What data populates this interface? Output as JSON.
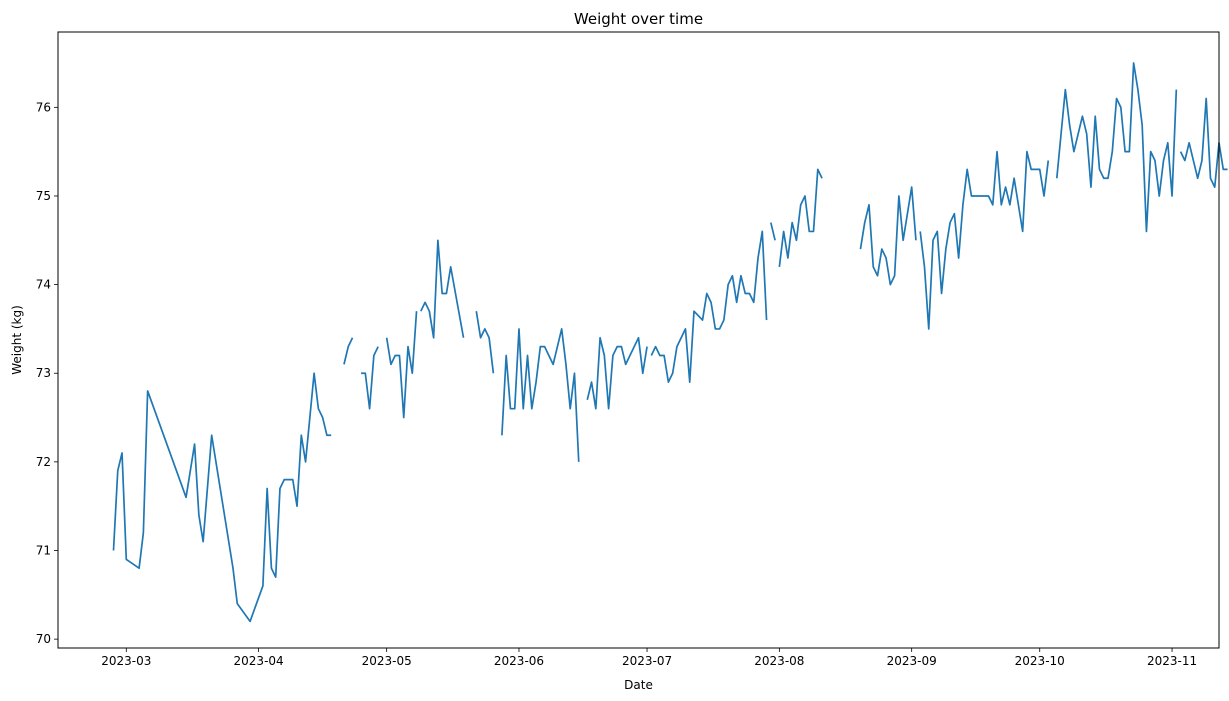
{
  "chart_data": {
    "type": "line",
    "title": "Weight over time",
    "xlabel": "Date",
    "ylabel": "Weight (kg)",
    "xlim": [
      "2023-02-13",
      "2023-11-12"
    ],
    "ylim": [
      69.9,
      76.85
    ],
    "grid": false,
    "x_ticks": [
      "2023-03-01",
      "2023-04-01",
      "2023-05-01",
      "2023-06-01",
      "2023-07-01",
      "2023-08-01",
      "2023-09-01",
      "2023-10-01",
      "2023-11-01"
    ],
    "x_tick_labels": [
      "2023-03",
      "2023-04",
      "2023-05",
      "2023-06",
      "2023-07",
      "2023-08",
      "2023-09",
      "2023-10",
      "2023-11"
    ],
    "y_ticks": [
      70,
      71,
      72,
      73,
      74,
      75,
      76
    ],
    "y_tick_labels": [
      "70",
      "71",
      "72",
      "73",
      "74",
      "75",
      "76"
    ],
    "series": [
      {
        "color": "#1f77b4",
        "segments": [
          [
            [
              "2023-02-26",
              71.0
            ],
            [
              "2023-02-27",
              71.9
            ],
            [
              "2023-02-28",
              72.1
            ],
            [
              "2023-03-01",
              70.9
            ],
            [
              "2023-03-04",
              70.8
            ],
            [
              "2023-03-05",
              71.2
            ],
            [
              "2023-03-06",
              72.8
            ],
            [
              "2023-03-15",
              71.6
            ],
            [
              "2023-03-17",
              72.2
            ],
            [
              "2023-03-18",
              71.4
            ],
            [
              "2023-03-19",
              71.1
            ],
            [
              "2023-03-21",
              72.3
            ],
            [
              "2023-03-25",
              71.1
            ],
            [
              "2023-03-26",
              70.8
            ],
            [
              "2023-03-27",
              70.4
            ],
            [
              "2023-03-30",
              70.2
            ],
            [
              "2023-04-02",
              70.6
            ],
            [
              "2023-04-03",
              71.7
            ],
            [
              "2023-04-04",
              70.8
            ],
            [
              "2023-04-05",
              70.7
            ],
            [
              "2023-04-06",
              71.7
            ],
            [
              "2023-04-07",
              71.8
            ],
            [
              "2023-04-09",
              71.8
            ],
            [
              "2023-04-10",
              71.5
            ],
            [
              "2023-04-11",
              72.3
            ],
            [
              "2023-04-12",
              72.0
            ],
            [
              "2023-04-14",
              73.0
            ],
            [
              "2023-04-15",
              72.6
            ],
            [
              "2023-04-16",
              72.5
            ],
            [
              "2023-04-17",
              72.3
            ],
            [
              "2023-04-18",
              72.3
            ]
          ],
          [
            [
              "2023-04-21",
              73.1
            ],
            [
              "2023-04-22",
              73.3
            ],
            [
              "2023-04-23",
              73.4
            ]
          ],
          [
            [
              "2023-04-25",
              73.0
            ],
            [
              "2023-04-26",
              73.0
            ],
            [
              "2023-04-27",
              72.6
            ],
            [
              "2023-04-28",
              73.2
            ],
            [
              "2023-04-29",
              73.3
            ]
          ],
          [
            [
              "2023-05-01",
              73.4
            ],
            [
              "2023-05-02",
              73.1
            ],
            [
              "2023-05-03",
              73.2
            ],
            [
              "2023-05-04",
              73.2
            ],
            [
              "2023-05-05",
              72.5
            ],
            [
              "2023-05-06",
              73.3
            ],
            [
              "2023-05-07",
              73.0
            ],
            [
              "2023-05-08",
              73.7
            ]
          ],
          [
            [
              "2023-05-09",
              73.7
            ],
            [
              "2023-05-10",
              73.8
            ],
            [
              "2023-05-11",
              73.7
            ],
            [
              "2023-05-12",
              73.4
            ],
            [
              "2023-05-13",
              74.5
            ],
            [
              "2023-05-14",
              73.9
            ],
            [
              "2023-05-15",
              73.9
            ],
            [
              "2023-05-16",
              74.2
            ],
            [
              "2023-05-19",
              73.4
            ]
          ],
          [
            [
              "2023-05-22",
              73.7
            ],
            [
              "2023-05-23",
              73.4
            ],
            [
              "2023-05-24",
              73.5
            ],
            [
              "2023-05-25",
              73.4
            ],
            [
              "2023-05-26",
              73.0
            ]
          ],
          [
            [
              "2023-05-28",
              72.3
            ],
            [
              "2023-05-29",
              73.2
            ],
            [
              "2023-05-30",
              72.6
            ],
            [
              "2023-05-31",
              72.6
            ],
            [
              "2023-06-01",
              73.5
            ],
            [
              "2023-06-02",
              72.6
            ],
            [
              "2023-06-03",
              73.2
            ],
            [
              "2023-06-04",
              72.6
            ],
            [
              "2023-06-05",
              72.9
            ],
            [
              "2023-06-06",
              73.3
            ],
            [
              "2023-06-07",
              73.3
            ],
            [
              "2023-06-09",
              73.1
            ],
            [
              "2023-06-10",
              73.3
            ],
            [
              "2023-06-11",
              73.5
            ],
            [
              "2023-06-12",
              73.1
            ],
            [
              "2023-06-13",
              72.6
            ],
            [
              "2023-06-14",
              73.0
            ],
            [
              "2023-06-15",
              72.0
            ]
          ],
          [
            [
              "2023-06-17",
              72.7
            ],
            [
              "2023-06-18",
              72.9
            ],
            [
              "2023-06-19",
              72.6
            ],
            [
              "2023-06-20",
              73.4
            ],
            [
              "2023-06-21",
              73.2
            ],
            [
              "2023-06-22",
              72.6
            ],
            [
              "2023-06-23",
              73.2
            ],
            [
              "2023-06-24",
              73.3
            ],
            [
              "2023-06-25",
              73.3
            ],
            [
              "2023-06-26",
              73.1
            ],
            [
              "2023-06-29",
              73.4
            ],
            [
              "2023-06-30",
              73.0
            ],
            [
              "2023-07-01",
              73.3
            ]
          ],
          [
            [
              "2023-07-02",
              73.2
            ],
            [
              "2023-07-03",
              73.3
            ],
            [
              "2023-07-04",
              73.2
            ],
            [
              "2023-07-05",
              73.2
            ],
            [
              "2023-07-06",
              72.9
            ],
            [
              "2023-07-07",
              73.0
            ],
            [
              "2023-07-08",
              73.3
            ],
            [
              "2023-07-10",
              73.5
            ],
            [
              "2023-07-11",
              72.9
            ],
            [
              "2023-07-12",
              73.7
            ],
            [
              "2023-07-14",
              73.6
            ],
            [
              "2023-07-15",
              73.9
            ],
            [
              "2023-07-16",
              73.8
            ],
            [
              "2023-07-17",
              73.5
            ],
            [
              "2023-07-18",
              73.5
            ],
            [
              "2023-07-19",
              73.6
            ],
            [
              "2023-07-20",
              74.0
            ],
            [
              "2023-07-21",
              74.1
            ],
            [
              "2023-07-22",
              73.8
            ],
            [
              "2023-07-23",
              74.1
            ],
            [
              "2023-07-24",
              73.9
            ],
            [
              "2023-07-25",
              73.9
            ],
            [
              "2023-07-26",
              73.8
            ],
            [
              "2023-07-27",
              74.3
            ],
            [
              "2023-07-28",
              74.6
            ],
            [
              "2023-07-29",
              73.6
            ]
          ],
          [
            [
              "2023-07-30",
              74.7
            ],
            [
              "2023-07-31",
              74.5
            ]
          ],
          [
            [
              "2023-08-01",
              74.2
            ],
            [
              "2023-08-02",
              74.6
            ],
            [
              "2023-08-03",
              74.3
            ],
            [
              "2023-08-04",
              74.7
            ],
            [
              "2023-08-05",
              74.5
            ],
            [
              "2023-08-06",
              74.9
            ],
            [
              "2023-08-07",
              75.0
            ],
            [
              "2023-08-08",
              74.6
            ],
            [
              "2023-08-09",
              74.6
            ],
            [
              "2023-08-10",
              75.3
            ],
            [
              "2023-08-11",
              75.2
            ]
          ],
          [
            [
              "2023-08-20",
              74.4
            ],
            [
              "2023-08-21",
              74.7
            ],
            [
              "2023-08-22",
              74.9
            ],
            [
              "2023-08-23",
              74.2
            ],
            [
              "2023-08-24",
              74.1
            ],
            [
              "2023-08-25",
              74.4
            ],
            [
              "2023-08-26",
              74.3
            ],
            [
              "2023-08-27",
              74.0
            ],
            [
              "2023-08-28",
              74.1
            ],
            [
              "2023-08-29",
              75.0
            ],
            [
              "2023-08-30",
              74.5
            ],
            [
              "2023-08-31",
              74.8
            ],
            [
              "2023-09-01",
              75.1
            ],
            [
              "2023-09-02",
              74.5
            ]
          ],
          [
            [
              "2023-09-03",
              74.6
            ],
            [
              "2023-09-04",
              74.2
            ],
            [
              "2023-09-05",
              73.5
            ],
            [
              "2023-09-06",
              74.5
            ],
            [
              "2023-09-07",
              74.6
            ],
            [
              "2023-09-08",
              73.9
            ],
            [
              "2023-09-09",
              74.4
            ],
            [
              "2023-09-10",
              74.7
            ],
            [
              "2023-09-11",
              74.8
            ],
            [
              "2023-09-12",
              74.3
            ],
            [
              "2023-09-13",
              74.9
            ],
            [
              "2023-09-14",
              75.3
            ],
            [
              "2023-09-15",
              75.0
            ],
            [
              "2023-09-18",
              75.0
            ],
            [
              "2023-09-19",
              75.0
            ],
            [
              "2023-09-20",
              74.9
            ],
            [
              "2023-09-21",
              75.5
            ],
            [
              "2023-09-22",
              74.9
            ],
            [
              "2023-09-23",
              75.1
            ],
            [
              "2023-09-24",
              74.9
            ],
            [
              "2023-09-25",
              75.2
            ],
            [
              "2023-09-26",
              74.9
            ],
            [
              "2023-09-27",
              74.6
            ],
            [
              "2023-09-28",
              75.5
            ],
            [
              "2023-09-29",
              75.3
            ],
            [
              "2023-09-30",
              75.3
            ],
            [
              "2023-10-01",
              75.3
            ],
            [
              "2023-10-02",
              75.0
            ],
            [
              "2023-10-03",
              75.4
            ]
          ],
          [
            [
              "2023-10-05",
              75.2
            ],
            [
              "2023-10-06",
              75.7
            ],
            [
              "2023-10-07",
              76.2
            ],
            [
              "2023-10-08",
              75.8
            ],
            [
              "2023-10-09",
              75.5
            ],
            [
              "2023-10-10",
              75.7
            ],
            [
              "2023-10-11",
              75.9
            ],
            [
              "2023-10-12",
              75.7
            ],
            [
              "2023-10-13",
              75.1
            ],
            [
              "2023-10-14",
              75.9
            ],
            [
              "2023-10-15",
              75.3
            ],
            [
              "2023-10-16",
              75.2
            ],
            [
              "2023-10-17",
              75.2
            ],
            [
              "2023-10-18",
              75.5
            ],
            [
              "2023-10-19",
              76.1
            ],
            [
              "2023-10-20",
              76.0
            ],
            [
              "2023-10-21",
              75.5
            ],
            [
              "2023-10-22",
              75.5
            ],
            [
              "2023-10-23",
              76.5
            ],
            [
              "2023-10-24",
              76.2
            ],
            [
              "2023-10-25",
              75.8
            ],
            [
              "2023-10-26",
              74.6
            ],
            [
              "2023-10-27",
              75.5
            ],
            [
              "2023-10-28",
              75.4
            ],
            [
              "2023-10-29",
              75.0
            ],
            [
              "2023-10-30",
              75.4
            ],
            [
              "2023-10-31",
              75.6
            ],
            [
              "2023-11-01",
              75.0
            ],
            [
              "2023-11-02",
              76.2
            ]
          ],
          [
            [
              "2023-11-03",
              75.5
            ],
            [
              "2023-11-04",
              75.4
            ],
            [
              "2023-11-05",
              75.6
            ],
            [
              "2023-11-06",
              75.4
            ],
            [
              "2023-11-07",
              75.2
            ],
            [
              "2023-11-08",
              75.4
            ],
            [
              "2023-11-09",
              76.1
            ],
            [
              "2023-11-10",
              75.2
            ],
            [
              "2023-11-11",
              75.1
            ],
            [
              "2023-11-12",
              75.6
            ],
            [
              "2023-11-13",
              75.3
            ],
            [
              "2023-11-14",
              75.3
            ]
          ]
        ]
      }
    ]
  }
}
